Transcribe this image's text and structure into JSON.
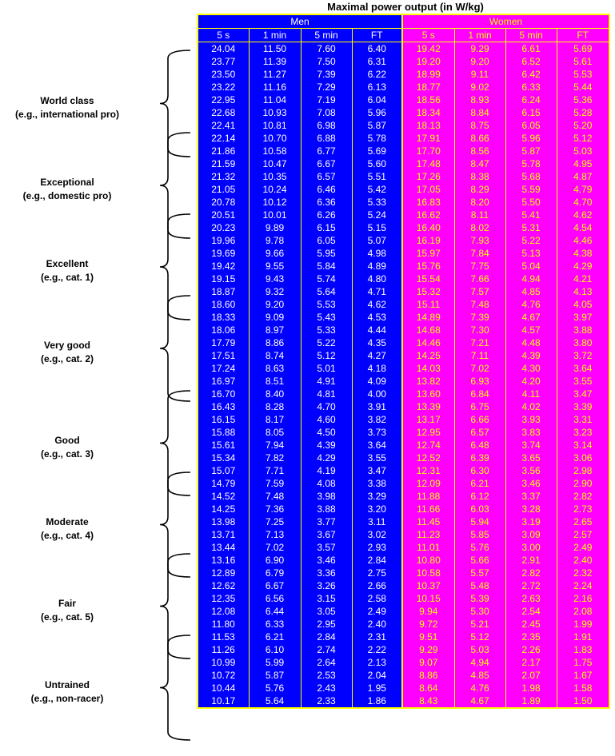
{
  "title": "Maximal power output (in W/kg)",
  "groups": {
    "men": "Men",
    "women": "Women"
  },
  "columns": [
    "5 s",
    "1 min",
    "5 min",
    "FT"
  ],
  "categories": [
    {
      "name": "World class",
      "sub": "(e.g., international pro)"
    },
    {
      "name": "Exceptional",
      "sub": "(e.g., domestic pro)"
    },
    {
      "name": "Excellent",
      "sub": "(e.g., cat. 1)"
    },
    {
      "name": "Very good",
      "sub": "(e.g., cat. 2)"
    },
    {
      "name": "Good",
      "sub": "(e.g., cat. 3)"
    },
    {
      "name": "Moderate",
      "sub": "(e.g., cat. 4)"
    },
    {
      "name": "Fair",
      "sub": "(e.g., cat. 5)"
    },
    {
      "name": "Untrained",
      "sub": "(e.g., non-racer)"
    }
  ],
  "rows": [
    [
      "24.04",
      "11.50",
      "7.60",
      "6.40",
      "19.42",
      "9.29",
      "6.61",
      "5.69"
    ],
    [
      "23.77",
      "11.39",
      "7.50",
      "6.31",
      "19.20",
      "9.20",
      "6.52",
      "5.61"
    ],
    [
      "23.50",
      "11.27",
      "7.39",
      "6.22",
      "18.99",
      "9.11",
      "6.42",
      "5.53"
    ],
    [
      "23.22",
      "11.16",
      "7.29",
      "6.13",
      "18.77",
      "9.02",
      "6.33",
      "5.44"
    ],
    [
      "22.95",
      "11.04",
      "7.19",
      "6.04",
      "18.56",
      "8.93",
      "6.24",
      "5.36"
    ],
    [
      "22.68",
      "10.93",
      "7.08",
      "5.96",
      "18.34",
      "8.84",
      "6.15",
      "5.28"
    ],
    [
      "22.41",
      "10.81",
      "6.98",
      "5.87",
      "18.13",
      "8.75",
      "6.05",
      "5.20"
    ],
    [
      "22.14",
      "10.70",
      "6.88",
      "5.78",
      "17.91",
      "8.66",
      "5.96",
      "5.12"
    ],
    [
      "21.86",
      "10.58",
      "6.77",
      "5.69",
      "17.70",
      "8.56",
      "5.87",
      "5.03"
    ],
    [
      "21.59",
      "10.47",
      "6.67",
      "5.60",
      "17.48",
      "8.47",
      "5.78",
      "4.95"
    ],
    [
      "21.32",
      "10.35",
      "6.57",
      "5.51",
      "17.26",
      "8.38",
      "5.68",
      "4.87"
    ],
    [
      "21.05",
      "10.24",
      "6.46",
      "5.42",
      "17.05",
      "8.29",
      "5.59",
      "4.79"
    ],
    [
      "20.78",
      "10.12",
      "6.36",
      "5.33",
      "16.83",
      "8.20",
      "5.50",
      "4.70"
    ],
    [
      "20.51",
      "10.01",
      "6.26",
      "5.24",
      "16.62",
      "8.11",
      "5.41",
      "4.62"
    ],
    [
      "20.23",
      "9.89",
      "6.15",
      "5.15",
      "16.40",
      "8.02",
      "5.31",
      "4.54"
    ],
    [
      "19.96",
      "9.78",
      "6.05",
      "5.07",
      "16.19",
      "7.93",
      "5.22",
      "4.46"
    ],
    [
      "19.69",
      "9.66",
      "5.95",
      "4.98",
      "15.97",
      "7.84",
      "5.13",
      "4.38"
    ],
    [
      "19.42",
      "9.55",
      "5.84",
      "4.89",
      "15.76",
      "7.75",
      "5.04",
      "4.29"
    ],
    [
      "19.15",
      "9.43",
      "5.74",
      "4.80",
      "15.54",
      "7.66",
      "4.94",
      "4.21"
    ],
    [
      "18.87",
      "9.32",
      "5.64",
      "4.71",
      "15.32",
      "7.57",
      "4.85",
      "4.13"
    ],
    [
      "18.60",
      "9.20",
      "5.53",
      "4.62",
      "15.11",
      "7.48",
      "4.76",
      "4.05"
    ],
    [
      "18.33",
      "9.09",
      "5.43",
      "4.53",
      "14.89",
      "7.39",
      "4.67",
      "3.97"
    ],
    [
      "18.06",
      "8.97",
      "5.33",
      "4.44",
      "14.68",
      "7.30",
      "4.57",
      "3.88"
    ],
    [
      "17.79",
      "8.86",
      "5.22",
      "4.35",
      "14.46",
      "7.21",
      "4.48",
      "3.80"
    ],
    [
      "17.51",
      "8.74",
      "5.12",
      "4.27",
      "14.25",
      "7.11",
      "4.39",
      "3.72"
    ],
    [
      "17.24",
      "8.63",
      "5.01",
      "4.18",
      "14.03",
      "7.02",
      "4.30",
      "3.64"
    ],
    [
      "16.97",
      "8.51",
      "4.91",
      "4.09",
      "13.82",
      "6.93",
      "4.20",
      "3.55"
    ],
    [
      "16.70",
      "8.40",
      "4.81",
      "4.00",
      "13.60",
      "6.84",
      "4.11",
      "3.47"
    ],
    [
      "16.43",
      "8.28",
      "4.70",
      "3.91",
      "13.39",
      "6.75",
      "4.02",
      "3.39"
    ],
    [
      "16.15",
      "8.17",
      "4.60",
      "3.82",
      "13.17",
      "6.66",
      "3.93",
      "3.31"
    ],
    [
      "15.88",
      "8.05",
      "4.50",
      "3.73",
      "12.95",
      "6.57",
      "3.83",
      "3.23"
    ],
    [
      "15.61",
      "7.94",
      "4.39",
      "3.64",
      "12.74",
      "6.48",
      "3.74",
      "3.14"
    ],
    [
      "15.34",
      "7.82",
      "4.29",
      "3.55",
      "12.52",
      "6.39",
      "3.65",
      "3.06"
    ],
    [
      "15.07",
      "7.71",
      "4.19",
      "3.47",
      "12.31",
      "6.30",
      "3.56",
      "2.98"
    ],
    [
      "14.79",
      "7.59",
      "4.08",
      "3.38",
      "12.09",
      "6.21",
      "3.46",
      "2.90"
    ],
    [
      "14.52",
      "7.48",
      "3.98",
      "3.29",
      "11.88",
      "6.12",
      "3.37",
      "2.82"
    ],
    [
      "14.25",
      "7.36",
      "3.88",
      "3.20",
      "11.66",
      "6.03",
      "3.28",
      "2.73"
    ],
    [
      "13.98",
      "7.25",
      "3.77",
      "3.11",
      "11.45",
      "5.94",
      "3.19",
      "2.65"
    ],
    [
      "13.71",
      "7.13",
      "3.67",
      "3.02",
      "11.23",
      "5.85",
      "3.09",
      "2.57"
    ],
    [
      "13.44",
      "7.02",
      "3.57",
      "2.93",
      "11.01",
      "5.76",
      "3.00",
      "2.49"
    ],
    [
      "13.16",
      "6.90",
      "3.46",
      "2.84",
      "10.80",
      "5.66",
      "2.91",
      "2.40"
    ],
    [
      "12.89",
      "6.79",
      "3.36",
      "2.75",
      "10.58",
      "5.57",
      "2.82",
      "2.32"
    ],
    [
      "12.62",
      "6.67",
      "3.26",
      "2.66",
      "10.37",
      "5.48",
      "2.72",
      "2.24"
    ],
    [
      "12.35",
      "6.56",
      "3.15",
      "2.58",
      "10.15",
      "5.39",
      "2.63",
      "2.16"
    ],
    [
      "12.08",
      "6.44",
      "3.05",
      "2.49",
      "9.94",
      "5.30",
      "2.54",
      "2.08"
    ],
    [
      "11.80",
      "6.33",
      "2.95",
      "2.40",
      "9.72",
      "5.21",
      "2.45",
      "1.99"
    ],
    [
      "11.53",
      "6.21",
      "2.84",
      "2.31",
      "9.51",
      "5.12",
      "2.35",
      "1.91"
    ],
    [
      "11.26",
      "6.10",
      "2.74",
      "2.22",
      "9.29",
      "5.03",
      "2.26",
      "1.83"
    ],
    [
      "10.99",
      "5.99",
      "2.64",
      "2.13",
      "9.07",
      "4.94",
      "2.17",
      "1.75"
    ],
    [
      "10.72",
      "5.87",
      "2.53",
      "2.04",
      "8.86",
      "4.85",
      "2.07",
      "1.67"
    ],
    [
      "10.44",
      "5.76",
      "2.43",
      "1.95",
      "8.64",
      "4.76",
      "1.98",
      "1.58"
    ],
    [
      "10.17",
      "5.64",
      "2.33",
      "1.86",
      "8.43",
      "4.67",
      "1.89",
      "1.50"
    ]
  ]
}
